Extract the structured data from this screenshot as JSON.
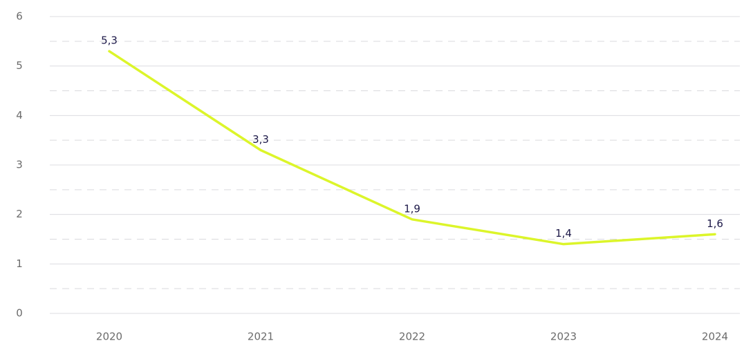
{
  "chart_data": {
    "type": "line",
    "categories": [
      "2020",
      "2021",
      "2022",
      "2023",
      "2024"
    ],
    "values": [
      5.3,
      3.3,
      1.9,
      1.4,
      1.6
    ],
    "value_labels": [
      "5,3",
      "3,3",
      "1,9",
      "1,4",
      "1,6"
    ],
    "color": "#dcf52a",
    "ylim": [
      0,
      6
    ],
    "yticks": [
      0,
      1,
      2,
      3,
      4,
      5,
      6
    ],
    "yminor_ticks": [
      0.5,
      1.5,
      2.5,
      3.5,
      4.5,
      5.5
    ],
    "grid": true
  }
}
